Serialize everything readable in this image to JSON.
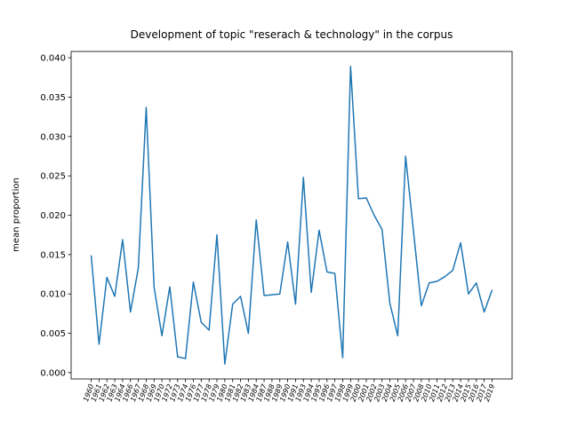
{
  "chart_data": {
    "type": "line",
    "title": "Development of topic \"reserach & technology\" in the corpus",
    "y_label": "mean proportion",
    "categories": [
      "1960",
      "1961",
      "1962",
      "1963",
      "1964",
      "1966",
      "1967",
      "1968",
      "1969",
      "1970",
      "1972",
      "1973",
      "1974",
      "1976",
      "1977",
      "1978",
      "1979",
      "1980",
      "1981",
      "1982",
      "1983",
      "1984",
      "1987",
      "1988",
      "1989",
      "1990",
      "1991",
      "1993",
      "1994",
      "1995",
      "1996",
      "1997",
      "1998",
      "1999",
      "2000",
      "2001",
      "2002",
      "2003",
      "2004",
      "2005",
      "2006",
      "2007",
      "2008",
      "2010",
      "2011",
      "2012",
      "2013",
      "2014",
      "2015",
      "2016",
      "2017",
      "2019"
    ],
    "values": [
      0.0149,
      0.0036,
      0.0121,
      0.0097,
      0.0169,
      0.0077,
      0.0133,
      0.0337,
      0.0109,
      0.0047,
      0.0109,
      0.002,
      0.0018,
      0.0115,
      0.0064,
      0.0054,
      0.0175,
      0.0011,
      0.0087,
      0.0097,
      0.005,
      0.0194,
      0.0098,
      0.0099,
      0.01,
      0.0166,
      0.0087,
      0.0248,
      0.0102,
      0.0181,
      0.0128,
      0.0126,
      0.0019,
      0.0389,
      0.0221,
      0.0222,
      0.02,
      0.0182,
      0.0088,
      0.0047,
      0.0275,
      0.018,
      0.0085,
      0.0114,
      0.0116,
      0.0122,
      0.013,
      0.0165,
      0.01,
      0.0114,
      0.0077,
      0.0105
    ],
    "color": "#1f77b4",
    "ylim": [
      -0.0008,
      0.0408
    ],
    "yticks": [
      {
        "value": 0,
        "label": "0.000"
      },
      {
        "value": 0.005,
        "label": "0.005"
      },
      {
        "value": 0.01,
        "label": "0.010"
      },
      {
        "value": 0.015,
        "label": "0.015"
      },
      {
        "value": 0.02,
        "label": "0.020"
      },
      {
        "value": 0.025,
        "label": "0.025"
      },
      {
        "value": 0.03,
        "label": "0.030"
      },
      {
        "value": 0.035,
        "label": "0.035"
      },
      {
        "value": 0.04,
        "label": "0.040"
      }
    ]
  }
}
